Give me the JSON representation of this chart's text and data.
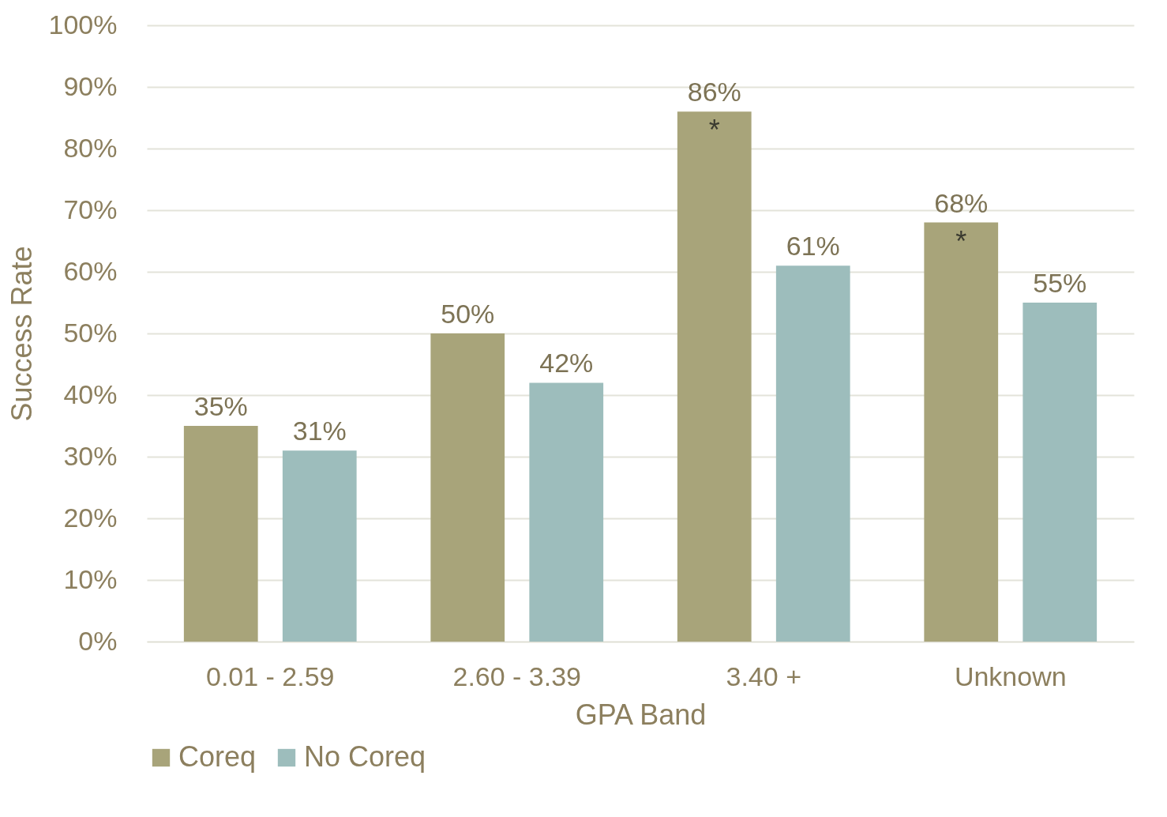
{
  "chart_data": {
    "type": "bar",
    "xlabel": "GPA Band",
    "ylabel": "Success Rate",
    "categories": [
      "0.01 - 2.59",
      "2.60 - 3.39",
      "3.40 +",
      "Unknown"
    ],
    "series": [
      {
        "name": "Coreq",
        "color": "#a8a47a",
        "values": [
          35,
          50,
          86,
          68
        ],
        "value_labels": [
          "35%",
          "50%",
          "86%",
          "68%"
        ]
      },
      {
        "name": "No Coreq",
        "color": "#9dbdbc",
        "values": [
          31,
          42,
          61,
          55
        ],
        "value_labels": [
          "31%",
          "42%",
          "61%",
          "55%"
        ]
      }
    ],
    "ylim": [
      0,
      100
    ],
    "yticks": [
      {
        "value": 0,
        "label": "0%"
      },
      {
        "value": 10,
        "label": "10%"
      },
      {
        "value": 20,
        "label": "20%"
      },
      {
        "value": 30,
        "label": "30%"
      },
      {
        "value": 40,
        "label": "40%"
      },
      {
        "value": 50,
        "label": "50%"
      },
      {
        "value": 60,
        "label": "60%"
      },
      {
        "value": 70,
        "label": "70%"
      },
      {
        "value": 80,
        "label": "80%"
      },
      {
        "value": 90,
        "label": "90%"
      },
      {
        "value": 100,
        "label": "100%"
      }
    ],
    "annotations": [
      "*",
      "*"
    ],
    "grid": "y",
    "legend": "bottom"
  }
}
